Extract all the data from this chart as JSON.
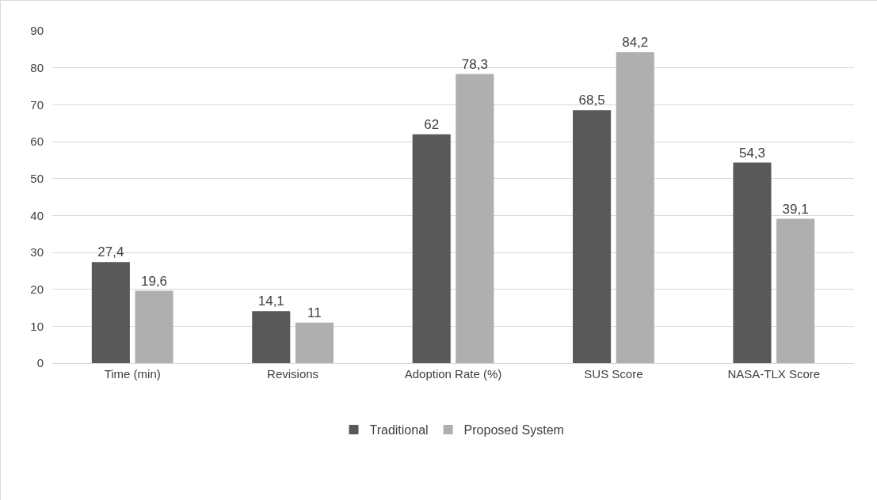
{
  "chart_data": {
    "type": "bar",
    "categories": [
      "Time (min)",
      "Revisions",
      "Adoption Rate (%)",
      "SUS Score",
      "NASA-TLX Score"
    ],
    "series": [
      {
        "name": "Traditional",
        "color": "#595959",
        "values": [
          27.4,
          14.1,
          62,
          68.5,
          54.3
        ],
        "value_labels": [
          "27,4",
          "14,1",
          "62",
          "68,5",
          "54,3"
        ]
      },
      {
        "name": "Proposed System",
        "color": "#afafaf",
        "values": [
          19.6,
          11,
          78.3,
          84.2,
          39.1
        ],
        "value_labels": [
          "19,6",
          "11",
          "78,3",
          "84,2",
          "39,1"
        ]
      }
    ],
    "ylim": [
      0,
      90
    ],
    "yticks": [
      0,
      10,
      20,
      30,
      40,
      50,
      60,
      70,
      80,
      90
    ],
    "grid": "y",
    "legend": "bottom"
  }
}
